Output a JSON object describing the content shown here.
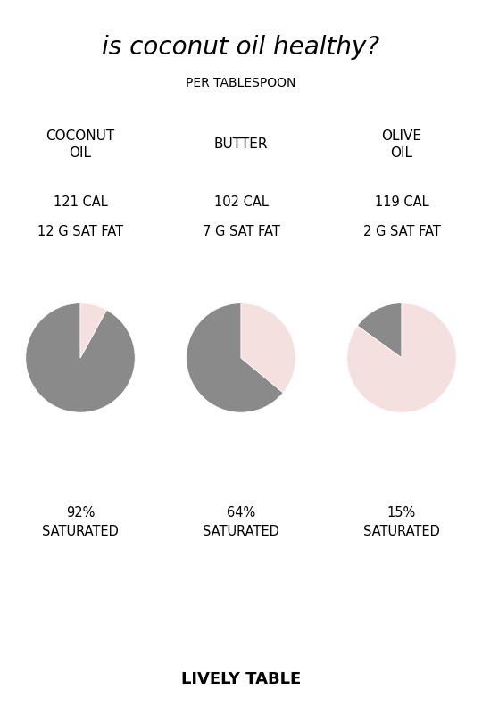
{
  "title": "is coconut oil healthy?",
  "subtitle": "PER TABLESPOON",
  "annotations": [
    "LIVELY TABLE"
  ],
  "chart_data": [
    {
      "type": "pie",
      "title": "COCONUT\nOIL",
      "values": [
        92,
        8
      ],
      "colors": [
        "#8a8a8a",
        "#f5e0e0"
      ],
      "annotations": [
        "121 CAL",
        "12 G SAT FAT",
        "92%\nSATURATED"
      ]
    },
    {
      "type": "pie",
      "title": "BUTTER",
      "values": [
        64,
        36
      ],
      "colors": [
        "#8a8a8a",
        "#f5e0e0"
      ],
      "annotations": [
        "102 CAL",
        "7 G SAT FAT",
        "64%\nSATURATED"
      ]
    },
    {
      "type": "pie",
      "title": "OLIVE\nOIL",
      "values": [
        15,
        85
      ],
      "colors": [
        "#8a8a8a",
        "#f5e0e0"
      ],
      "annotations": [
        "119 CAL",
        "2 G SAT FAT",
        "15%\nSATURATED"
      ]
    }
  ]
}
